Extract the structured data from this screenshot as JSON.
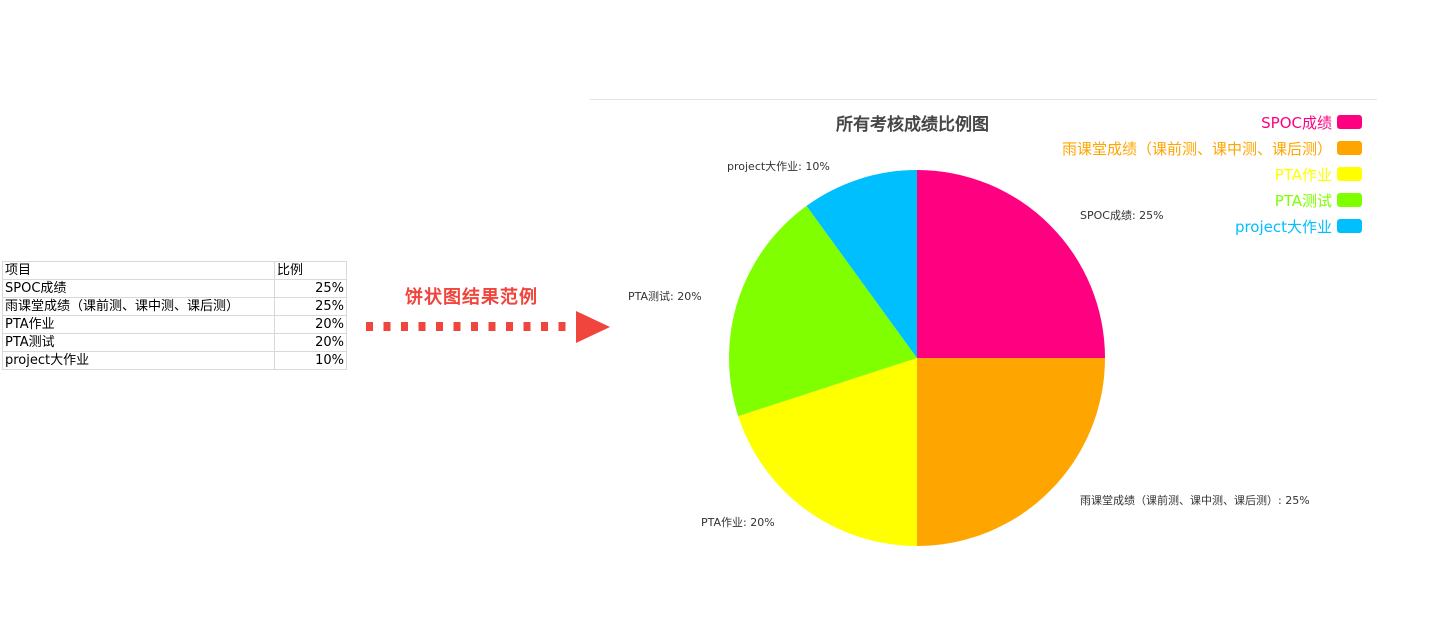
{
  "table": {
    "header": {
      "item": "项目",
      "ratio": "比例"
    },
    "rows": [
      {
        "item": "SPOC成绩",
        "ratio": "25%"
      },
      {
        "item": "雨课堂成绩（课前测、课中测、课后测）",
        "ratio": "25%"
      },
      {
        "item": "PTA作业",
        "ratio": "20%"
      },
      {
        "item": "PTA测试",
        "ratio": "20%"
      },
      {
        "item": "project大作业",
        "ratio": "10%"
      }
    ]
  },
  "caption": "饼状图结果范例",
  "arrow_color": "#f0453c",
  "chart_data": {
    "type": "pie",
    "title": "所有考核成绩比例图",
    "legend_position": "top-right",
    "slices": [
      {
        "name": "SPOC成绩",
        "value": 25,
        "color": "#ff0080",
        "label": "SPOC成绩: 25%"
      },
      {
        "name": "雨课堂成绩（课前测、课中测、课后测）",
        "value": 25,
        "color": "#ffa500",
        "label": "雨课堂成绩（课前测、课中测、课后测）: 25%"
      },
      {
        "name": "PTA作业",
        "value": 20,
        "color": "#ffff00",
        "label": "PTA作业: 20%"
      },
      {
        "name": "PTA测试",
        "value": 20,
        "color": "#7fff00",
        "label": "PTA测试: 20%"
      },
      {
        "name": "project大作业",
        "value": 10,
        "color": "#00bfff",
        "label": "project大作业: 10%"
      }
    ]
  }
}
